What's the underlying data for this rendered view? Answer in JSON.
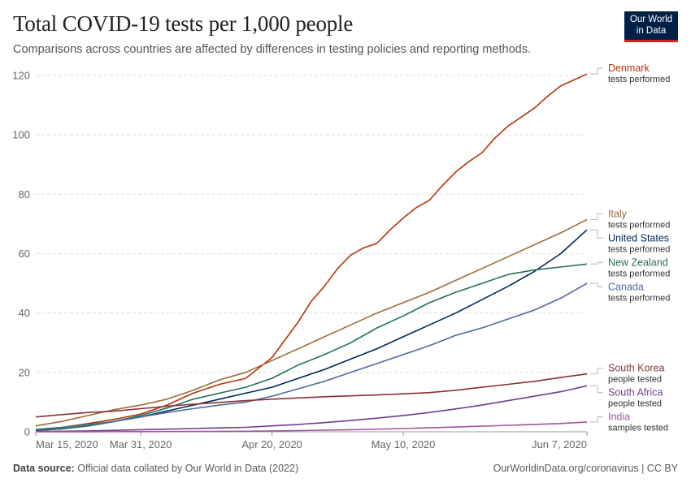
{
  "header": {
    "title": "Total COVID-19 tests per 1,000 people",
    "subtitle": "Comparisons across countries are affected by differences in testing policies and reporting methods."
  },
  "logo": {
    "line1": "Our World",
    "line2": "in Data"
  },
  "footer": {
    "source_label": "Data source:",
    "source_text": "Official data collated by Our World in Data (2022)",
    "right_text": "OurWorldinData.org/coronavirus | CC BY"
  },
  "chart_data": {
    "type": "line",
    "title": "Total COVID-19 tests per 1,000 people",
    "xlabel": "",
    "ylabel": "",
    "ylim": [
      0,
      120
    ],
    "yticks": [
      0,
      20,
      40,
      60,
      80,
      100,
      120
    ],
    "ytick_labels": [
      "0",
      "20",
      "40",
      "60",
      "80",
      "100",
      "120"
    ],
    "x_days_range": [
      0,
      84
    ],
    "xticks": [
      {
        "day": 0,
        "label": "Mar 15, 2020"
      },
      {
        "day": 16,
        "label": "Mar 31, 2020"
      },
      {
        "day": 36,
        "label": "Apr 20, 2020"
      },
      {
        "day": 56,
        "label": "May 10, 2020"
      },
      {
        "day": 84,
        "label": "Jun 7, 2020"
      }
    ],
    "grid": true,
    "legend": "right",
    "series": [
      {
        "name": "Denmark",
        "note": "tests performed",
        "color": "#b13507",
        "points": [
          [
            0,
            0.8
          ],
          [
            4,
            1.5
          ],
          [
            8,
            2.8
          ],
          [
            12,
            4.2
          ],
          [
            16,
            6
          ],
          [
            20,
            9
          ],
          [
            24,
            13
          ],
          [
            28,
            16
          ],
          [
            32,
            18
          ],
          [
            36,
            25
          ],
          [
            38,
            31
          ],
          [
            40,
            37
          ],
          [
            42,
            44
          ],
          [
            44,
            49
          ],
          [
            46,
            55
          ],
          [
            48,
            59.5
          ],
          [
            50,
            62
          ],
          [
            52,
            63.5
          ],
          [
            54,
            68
          ],
          [
            56,
            72
          ],
          [
            58,
            75.5
          ],
          [
            60,
            78
          ],
          [
            62,
            83
          ],
          [
            64,
            87.5
          ],
          [
            66,
            91
          ],
          [
            68,
            94
          ],
          [
            70,
            99
          ],
          [
            72,
            103
          ],
          [
            74,
            106
          ],
          [
            76,
            109
          ],
          [
            78,
            113
          ],
          [
            80,
            116.5
          ],
          [
            82,
            118.5
          ],
          [
            84,
            120.5
          ]
        ]
      },
      {
        "name": "Italy",
        "note": "tests performed",
        "color": "#996d39",
        "points": [
          [
            0,
            2
          ],
          [
            4,
            3.5
          ],
          [
            8,
            5.5
          ],
          [
            12,
            7.5
          ],
          [
            16,
            9
          ],
          [
            20,
            11
          ],
          [
            24,
            14
          ],
          [
            28,
            17.5
          ],
          [
            32,
            20
          ],
          [
            36,
            24
          ],
          [
            40,
            28
          ],
          [
            44,
            32
          ],
          [
            48,
            36
          ],
          [
            52,
            40
          ],
          [
            56,
            43.5
          ],
          [
            60,
            47
          ],
          [
            64,
            51
          ],
          [
            68,
            55
          ],
          [
            72,
            59
          ],
          [
            76,
            63
          ],
          [
            80,
            67
          ],
          [
            84,
            71.5
          ]
        ]
      },
      {
        "name": "United States",
        "note": "tests performed",
        "color": "#00295b",
        "points": [
          [
            0,
            0.5
          ],
          [
            4,
            1
          ],
          [
            8,
            2
          ],
          [
            12,
            3.5
          ],
          [
            16,
            5
          ],
          [
            20,
            7
          ],
          [
            24,
            9
          ],
          [
            28,
            11
          ],
          [
            32,
            13
          ],
          [
            36,
            15
          ],
          [
            40,
            18
          ],
          [
            44,
            21
          ],
          [
            48,
            24.5
          ],
          [
            52,
            28
          ],
          [
            56,
            32
          ],
          [
            60,
            36
          ],
          [
            64,
            40
          ],
          [
            68,
            44.5
          ],
          [
            72,
            49
          ],
          [
            76,
            54
          ],
          [
            80,
            60
          ],
          [
            84,
            68
          ]
        ]
      },
      {
        "name": "New Zealand",
        "note": "tests performed",
        "color": "#286f54",
        "points": [
          [
            0,
            0.4
          ],
          [
            4,
            1
          ],
          [
            8,
            2
          ],
          [
            12,
            3.5
          ],
          [
            16,
            5.5
          ],
          [
            20,
            8
          ],
          [
            24,
            11
          ],
          [
            28,
            13
          ],
          [
            32,
            15
          ],
          [
            36,
            18
          ],
          [
            40,
            22.5
          ],
          [
            44,
            26
          ],
          [
            48,
            30
          ],
          [
            52,
            35
          ],
          [
            56,
            39
          ],
          [
            60,
            43.5
          ],
          [
            64,
            47
          ],
          [
            68,
            50
          ],
          [
            72,
            53
          ],
          [
            76,
            54.5
          ],
          [
            80,
            55.5
          ],
          [
            84,
            56.5
          ]
        ]
      },
      {
        "name": "Canada",
        "note": "tests performed",
        "color": "#4c6a9c",
        "points": [
          [
            0,
            0.8
          ],
          [
            4,
            1.5
          ],
          [
            8,
            2.5
          ],
          [
            12,
            3.5
          ],
          [
            16,
            5
          ],
          [
            20,
            6.5
          ],
          [
            24,
            7.8
          ],
          [
            28,
            9
          ],
          [
            32,
            10
          ],
          [
            36,
            12
          ],
          [
            40,
            14.5
          ],
          [
            44,
            17
          ],
          [
            48,
            20
          ],
          [
            52,
            23
          ],
          [
            56,
            26
          ],
          [
            60,
            29
          ],
          [
            64,
            32.5
          ],
          [
            68,
            35
          ],
          [
            72,
            38
          ],
          [
            76,
            41
          ],
          [
            80,
            45
          ],
          [
            84,
            50
          ]
        ]
      },
      {
        "name": "South Korea",
        "note": "people tested",
        "color": "#883039",
        "points": [
          [
            0,
            5
          ],
          [
            4,
            5.8
          ],
          [
            8,
            6.5
          ],
          [
            12,
            7
          ],
          [
            16,
            7.8
          ],
          [
            20,
            8.6
          ],
          [
            24,
            9.3
          ],
          [
            28,
            9.9
          ],
          [
            32,
            10.5
          ],
          [
            36,
            11
          ],
          [
            40,
            11.4
          ],
          [
            44,
            11.8
          ],
          [
            48,
            12.1
          ],
          [
            52,
            12.4
          ],
          [
            56,
            12.8
          ],
          [
            60,
            13.2
          ],
          [
            64,
            14
          ],
          [
            68,
            15
          ],
          [
            72,
            16
          ],
          [
            76,
            17
          ],
          [
            80,
            18.3
          ],
          [
            84,
            19.5
          ]
        ]
      },
      {
        "name": "South Africa",
        "note": "people tested",
        "color": "#6d3e91",
        "points": [
          [
            0,
            0.1
          ],
          [
            4,
            0.2
          ],
          [
            8,
            0.3
          ],
          [
            12,
            0.5
          ],
          [
            16,
            0.7
          ],
          [
            20,
            0.9
          ],
          [
            24,
            1.1
          ],
          [
            28,
            1.3
          ],
          [
            32,
            1.5
          ],
          [
            36,
            2
          ],
          [
            40,
            2.5
          ],
          [
            44,
            3.1
          ],
          [
            48,
            3.8
          ],
          [
            52,
            4.6
          ],
          [
            56,
            5.5
          ],
          [
            60,
            6.5
          ],
          [
            64,
            7.7
          ],
          [
            68,
            9
          ],
          [
            72,
            10.5
          ],
          [
            76,
            12
          ],
          [
            80,
            13.5
          ],
          [
            84,
            15.5
          ]
        ]
      },
      {
        "name": "India",
        "note": "samples tested",
        "color": "#a2559c",
        "points": [
          [
            0,
            0
          ],
          [
            8,
            0.02
          ],
          [
            16,
            0.05
          ],
          [
            24,
            0.1
          ],
          [
            32,
            0.2
          ],
          [
            40,
            0.4
          ],
          [
            48,
            0.7
          ],
          [
            56,
            1.1
          ],
          [
            64,
            1.6
          ],
          [
            72,
            2.2
          ],
          [
            80,
            2.8
          ],
          [
            84,
            3.3
          ]
        ]
      }
    ]
  }
}
